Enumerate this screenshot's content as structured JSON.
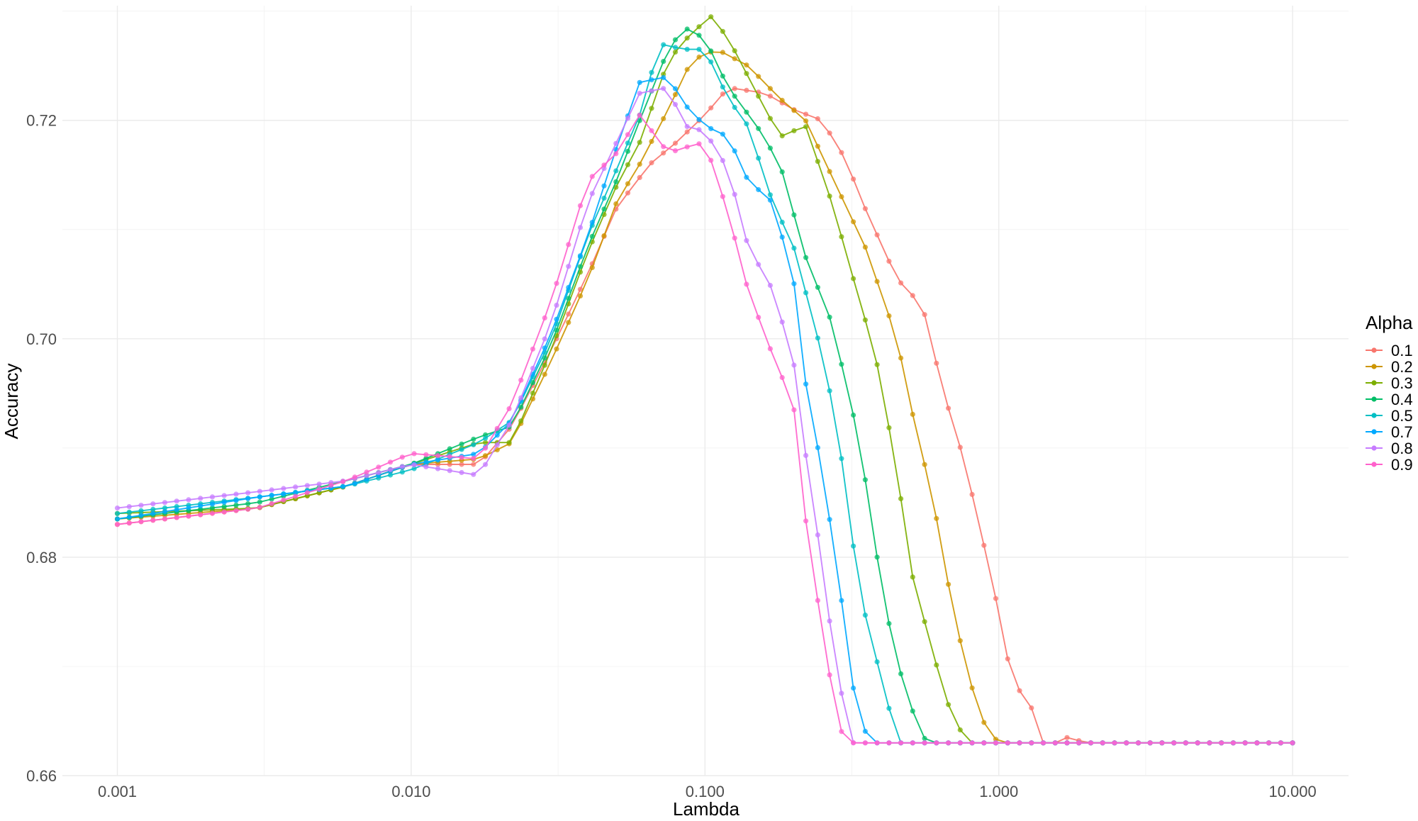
{
  "chart_data": {
    "type": "line",
    "xlabel": "Lambda",
    "ylabel": "Accuracy",
    "x_scale": "log10",
    "xlim": [
      0.00065,
      15.5
    ],
    "ylim": [
      0.66,
      0.7305
    ],
    "x_ticks": [
      0.001,
      0.01,
      0.1,
      1,
      10
    ],
    "x_tick_labels": [
      "0.001",
      "0.010",
      "0.100",
      "1.000",
      "10.000"
    ],
    "y_ticks": [
      0.66,
      0.68,
      0.7,
      0.72
    ],
    "y_tick_labels": [
      "0.66",
      "0.68",
      "0.70",
      "0.72"
    ],
    "grid": true,
    "legend": {
      "title": "Alpha",
      "position": "right"
    },
    "colors": {
      "0.1": "#F8766D",
      "0.2": "#CD9600",
      "0.3": "#7CAE00",
      "0.4": "#00BE67",
      "0.5": "#00BFC4",
      "0.7": "#00A9FF",
      "0.8": "#C77CFF",
      "0.9": "#FF61CC"
    },
    "x_points": 100,
    "series": [
      {
        "name": "0.1",
        "keypoints": [
          [
            0.001,
            0.683
          ],
          [
            0.003,
            0.6845
          ],
          [
            0.006,
            0.6865
          ],
          [
            0.01,
            0.6885
          ],
          [
            0.017,
            0.6885
          ],
          [
            0.022,
            0.692
          ],
          [
            0.03,
            0.699
          ],
          [
            0.04,
            0.706
          ],
          [
            0.05,
            0.712
          ],
          [
            0.065,
            0.716
          ],
          [
            0.08,
            0.718
          ],
          [
            0.1,
            0.7205
          ],
          [
            0.12,
            0.723
          ],
          [
            0.16,
            0.7225
          ],
          [
            0.2,
            0.721
          ],
          [
            0.25,
            0.72
          ],
          [
            0.3,
            0.7165
          ],
          [
            0.35,
            0.712
          ],
          [
            0.45,
            0.7055
          ],
          [
            0.55,
            0.703
          ],
          [
            0.65,
            0.695
          ],
          [
            0.75,
            0.6895
          ],
          [
            0.85,
            0.6835
          ],
          [
            1.0,
            0.675
          ],
          [
            1.12,
            0.668
          ],
          [
            1.25,
            0.6675
          ],
          [
            1.4,
            0.663
          ],
          [
            1.6,
            0.663
          ],
          [
            1.7,
            0.6635
          ],
          [
            2.0,
            0.663
          ],
          [
            10,
            0.663
          ]
        ]
      },
      {
        "name": "0.2",
        "keypoints": [
          [
            0.001,
            0.6835
          ],
          [
            0.003,
            0.6845
          ],
          [
            0.006,
            0.6865
          ],
          [
            0.01,
            0.6885
          ],
          [
            0.017,
            0.689
          ],
          [
            0.022,
            0.6905
          ],
          [
            0.03,
            0.698
          ],
          [
            0.04,
            0.7055
          ],
          [
            0.05,
            0.7125
          ],
          [
            0.06,
            0.716
          ],
          [
            0.075,
            0.721
          ],
          [
            0.09,
            0.7255
          ],
          [
            0.11,
            0.7265
          ],
          [
            0.14,
            0.725
          ],
          [
            0.18,
            0.722
          ],
          [
            0.22,
            0.72
          ],
          [
            0.28,
            0.714
          ],
          [
            0.35,
            0.7085
          ],
          [
            0.45,
            0.7
          ],
          [
            0.5,
            0.694
          ],
          [
            0.6,
            0.685
          ],
          [
            0.7,
            0.675
          ],
          [
            0.8,
            0.6685
          ],
          [
            0.9,
            0.6645
          ],
          [
            1.0,
            0.663
          ],
          [
            10,
            0.663
          ]
        ]
      },
      {
        "name": "0.3",
        "keypoints": [
          [
            0.001,
            0.684
          ],
          [
            0.003,
            0.6845
          ],
          [
            0.006,
            0.6865
          ],
          [
            0.01,
            0.6885
          ],
          [
            0.017,
            0.6905
          ],
          [
            0.022,
            0.6905
          ],
          [
            0.03,
            0.699
          ],
          [
            0.04,
            0.708
          ],
          [
            0.05,
            0.714
          ],
          [
            0.06,
            0.718
          ],
          [
            0.075,
            0.7255
          ],
          [
            0.09,
            0.728
          ],
          [
            0.105,
            0.7295
          ],
          [
            0.12,
            0.7275
          ],
          [
            0.15,
            0.7225
          ],
          [
            0.18,
            0.7185
          ],
          [
            0.22,
            0.7195
          ],
          [
            0.27,
            0.7125
          ],
          [
            0.32,
            0.7055
          ],
          [
            0.38,
            0.6985
          ],
          [
            0.45,
            0.688
          ],
          [
            0.5,
            0.679
          ],
          [
            0.6,
            0.671
          ],
          [
            0.7,
            0.665
          ],
          [
            0.8,
            0.663
          ],
          [
            10,
            0.663
          ]
        ]
      },
      {
        "name": "0.4",
        "keypoints": [
          [
            0.001,
            0.6835
          ],
          [
            0.003,
            0.685
          ],
          [
            0.006,
            0.687
          ],
          [
            0.01,
            0.6885
          ],
          [
            0.017,
            0.691
          ],
          [
            0.022,
            0.692
          ],
          [
            0.03,
            0.6995
          ],
          [
            0.04,
            0.7085
          ],
          [
            0.05,
            0.7145
          ],
          [
            0.06,
            0.72
          ],
          [
            0.075,
            0.7265
          ],
          [
            0.085,
            0.7285
          ],
          [
            0.1,
            0.7275
          ],
          [
            0.12,
            0.723
          ],
          [
            0.15,
            0.7195
          ],
          [
            0.18,
            0.716
          ],
          [
            0.22,
            0.7075
          ],
          [
            0.27,
            0.7015
          ],
          [
            0.32,
            0.693
          ],
          [
            0.36,
            0.6855
          ],
          [
            0.4,
            0.677
          ],
          [
            0.45,
            0.6705
          ],
          [
            0.5,
            0.6665
          ],
          [
            0.55,
            0.6635
          ],
          [
            0.6,
            0.663
          ],
          [
            10,
            0.663
          ]
        ]
      },
      {
        "name": "0.5",
        "keypoints": [
          [
            0.001,
            0.684
          ],
          [
            0.003,
            0.6855
          ],
          [
            0.006,
            0.6865
          ],
          [
            0.01,
            0.688
          ],
          [
            0.017,
            0.6905
          ],
          [
            0.022,
            0.6925
          ],
          [
            0.03,
            0.7
          ],
          [
            0.04,
            0.7095
          ],
          [
            0.05,
            0.7155
          ],
          [
            0.06,
            0.7205
          ],
          [
            0.07,
            0.727
          ],
          [
            0.085,
            0.7265
          ],
          [
            0.1,
            0.7265
          ],
          [
            0.12,
            0.722
          ],
          [
            0.14,
            0.7195
          ],
          [
            0.17,
            0.7125
          ],
          [
            0.2,
            0.7085
          ],
          [
            0.24,
            0.7005
          ],
          [
            0.28,
            0.6925
          ],
          [
            0.32,
            0.681
          ],
          [
            0.36,
            0.673
          ],
          [
            0.4,
            0.669
          ],
          [
            0.45,
            0.663
          ],
          [
            10,
            0.663
          ]
        ]
      },
      {
        "name": "0.7",
        "keypoints": [
          [
            0.001,
            0.6835
          ],
          [
            0.003,
            0.6855
          ],
          [
            0.006,
            0.6865
          ],
          [
            0.01,
            0.6885
          ],
          [
            0.017,
            0.6895
          ],
          [
            0.022,
            0.6925
          ],
          [
            0.03,
            0.7005
          ],
          [
            0.04,
            0.7095
          ],
          [
            0.05,
            0.7175
          ],
          [
            0.06,
            0.7235
          ],
          [
            0.075,
            0.724
          ],
          [
            0.085,
            0.7215
          ],
          [
            0.1,
            0.7195
          ],
          [
            0.12,
            0.7185
          ],
          [
            0.14,
            0.7145
          ],
          [
            0.17,
            0.7125
          ],
          [
            0.2,
            0.7055
          ],
          [
            0.22,
            0.696
          ],
          [
            0.25,
            0.688
          ],
          [
            0.28,
            0.6795
          ],
          [
            0.32,
            0.668
          ],
          [
            0.36,
            0.663
          ],
          [
            10,
            0.663
          ]
        ]
      },
      {
        "name": "0.8",
        "keypoints": [
          [
            0.001,
            0.6845
          ],
          [
            0.003,
            0.686
          ],
          [
            0.006,
            0.687
          ],
          [
            0.01,
            0.6885
          ],
          [
            0.017,
            0.6875
          ],
          [
            0.022,
            0.6925
          ],
          [
            0.03,
            0.7015
          ],
          [
            0.04,
            0.7125
          ],
          [
            0.05,
            0.718
          ],
          [
            0.06,
            0.7225
          ],
          [
            0.075,
            0.723
          ],
          [
            0.085,
            0.7195
          ],
          [
            0.1,
            0.719
          ],
          [
            0.12,
            0.7155
          ],
          [
            0.14,
            0.7085
          ],
          [
            0.17,
            0.7045
          ],
          [
            0.2,
            0.698
          ],
          [
            0.22,
            0.6895
          ],
          [
            0.25,
            0.6795
          ],
          [
            0.28,
            0.6695
          ],
          [
            0.32,
            0.663
          ],
          [
            10,
            0.663
          ]
        ]
      },
      {
        "name": "0.9",
        "keypoints": [
          [
            0.001,
            0.683
          ],
          [
            0.003,
            0.6845
          ],
          [
            0.006,
            0.687
          ],
          [
            0.01,
            0.6895
          ],
          [
            0.017,
            0.689
          ],
          [
            0.022,
            0.694
          ],
          [
            0.03,
            0.7035
          ],
          [
            0.04,
            0.7145
          ],
          [
            0.05,
            0.717
          ],
          [
            0.06,
            0.7205
          ],
          [
            0.075,
            0.717
          ],
          [
            0.085,
            0.7175
          ],
          [
            0.1,
            0.718
          ],
          [
            0.12,
            0.7115
          ],
          [
            0.14,
            0.7045
          ],
          [
            0.17,
            0.6985
          ],
          [
            0.2,
            0.694
          ],
          [
            0.22,
            0.6835
          ],
          [
            0.25,
            0.6735
          ],
          [
            0.28,
            0.6655
          ],
          [
            0.3,
            0.663
          ],
          [
            10,
            0.663
          ]
        ]
      }
    ]
  }
}
